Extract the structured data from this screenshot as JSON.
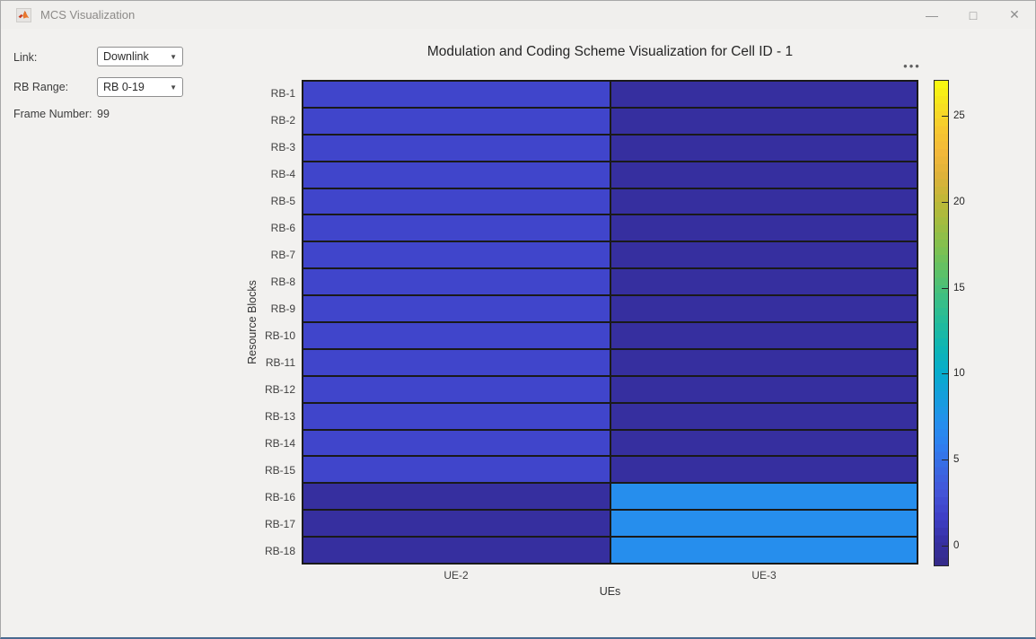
{
  "window": {
    "title": "MCS Visualization",
    "icons": {
      "app": "matlab-logo",
      "minimize": "—",
      "maximize": "□",
      "close": "✕",
      "dropdown_arrow": "▼",
      "axes_toolbar_ellipsis": "•••"
    }
  },
  "panel": {
    "link_label": "Link:",
    "link_value": "Downlink",
    "rb_label": "RB Range:",
    "rb_value": "RB 0-19",
    "frame_label": "Frame Number:",
    "frame_value": "99"
  },
  "chart_data": {
    "type": "heatmap",
    "title": "Modulation and Coding Scheme Visualization for Cell ID - 1",
    "xlabel": "UEs",
    "ylabel": "Resource Blocks",
    "columns": [
      "UE-2",
      "UE-3"
    ],
    "rows": [
      "RB-1",
      "RB-2",
      "RB-3",
      "RB-4",
      "RB-5",
      "RB-6",
      "RB-7",
      "RB-8",
      "RB-9",
      "RB-10",
      "RB-11",
      "RB-12",
      "RB-13",
      "RB-14",
      "RB-15",
      "RB-16",
      "RB-17",
      "RB-18"
    ],
    "values": [
      [
        2,
        0
      ],
      [
        2,
        0
      ],
      [
        2,
        0
      ],
      [
        2,
        0
      ],
      [
        2,
        0
      ],
      [
        2,
        0
      ],
      [
        2,
        0
      ],
      [
        2,
        0
      ],
      [
        2,
        0
      ],
      [
        2,
        0
      ],
      [
        2,
        0
      ],
      [
        2,
        0
      ],
      [
        2,
        0
      ],
      [
        2,
        0
      ],
      [
        2,
        0
      ],
      [
        0,
        7
      ],
      [
        0,
        7
      ],
      [
        0,
        7
      ]
    ],
    "color_limits": [
      -1.2,
      27.1
    ],
    "colorbar_ticks": [
      0,
      5,
      10,
      15,
      20,
      25
    ],
    "colormap": "parula",
    "colormap_stops": [
      [
        0.0,
        "#352a87"
      ],
      [
        0.05,
        "#3630a3"
      ],
      [
        0.1,
        "#3f3fc6"
      ],
      [
        0.15,
        "#4455d8"
      ],
      [
        0.2,
        "#3a68e1"
      ],
      [
        0.25,
        "#2e80f0"
      ],
      [
        0.3,
        "#2491ec"
      ],
      [
        0.35,
        "#149fdb"
      ],
      [
        0.4,
        "#07accb"
      ],
      [
        0.45,
        "#0eb5b4"
      ],
      [
        0.5,
        "#22bb9b"
      ],
      [
        0.55,
        "#3cbf85"
      ],
      [
        0.6,
        "#5ac16a"
      ],
      [
        0.65,
        "#7cc152"
      ],
      [
        0.7,
        "#9dbd41"
      ],
      [
        0.75,
        "#bdb838"
      ],
      [
        0.8,
        "#dcb23a"
      ],
      [
        0.85,
        "#f2b73a"
      ],
      [
        0.9,
        "#f7c830"
      ],
      [
        0.95,
        "#f7e11f"
      ],
      [
        1.0,
        "#f9fb0e"
      ]
    ],
    "grid_line_color": "#1a1a1a"
  }
}
